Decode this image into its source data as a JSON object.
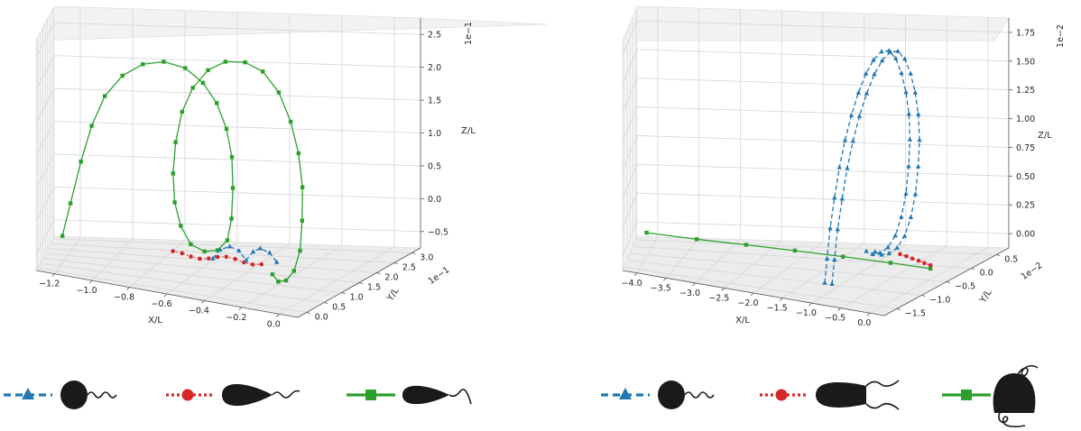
{
  "chart_data": [
    {
      "type": "line3d",
      "panel": "left",
      "xlabel": "X/L",
      "ylabel": "Y/L",
      "zlabel": "Z/L",
      "xticks": [
        "−1.2",
        "−1.0",
        "−0.8",
        "−0.6",
        "−0.4",
        "−0.2",
        "0.0"
      ],
      "yticks": [
        "0.0",
        "0.5",
        "1.0",
        "1.5",
        "2.0",
        "2.5",
        "3.0"
      ],
      "zticks": [
        "−0.5",
        "0.0",
        "0.5",
        "1.0",
        "1.5",
        "2.0",
        "2.5"
      ],
      "y_offset": "1e−1",
      "z_offset": "1e−1",
      "grid": true,
      "series": [
        {
          "color": "#2ca02c",
          "linestyle": "solid",
          "marker": "square",
          "points": [
            [
              -1.17,
              0.05,
              -0.4
            ],
            [
              -1.13,
              0.1,
              0.15
            ],
            [
              -1.08,
              0.18,
              0.85
            ],
            [
              -1.03,
              0.27,
              1.45
            ],
            [
              -0.97,
              0.38,
              1.95
            ],
            [
              -0.89,
              0.5,
              2.3
            ],
            [
              -0.8,
              0.64,
              2.5
            ],
            [
              -0.71,
              0.78,
              2.55
            ],
            [
              -0.62,
              0.92,
              2.45
            ],
            [
              -0.55,
              1.06,
              2.2
            ],
            [
              -0.5,
              1.2,
              1.85
            ],
            [
              -0.47,
              1.34,
              1.4
            ],
            [
              -0.46,
              1.48,
              0.9
            ],
            [
              -0.47,
              1.62,
              0.35
            ],
            [
              -0.49,
              1.76,
              -0.2
            ],
            [
              -0.52,
              1.88,
              -0.6
            ],
            [
              -0.57,
              1.97,
              -0.8
            ],
            [
              -0.63,
              2.02,
              -0.85
            ],
            [
              -0.69,
              2.03,
              -0.75
            ],
            [
              -0.73,
              2.0,
              -0.45
            ],
            [
              -0.75,
              1.92,
              -0.05
            ],
            [
              -0.75,
              1.82,
              0.45
            ],
            [
              -0.73,
              1.7,
              1.0
            ],
            [
              -0.69,
              1.56,
              1.55
            ],
            [
              -0.63,
              1.42,
              2.0
            ],
            [
              -0.55,
              1.3,
              2.35
            ],
            [
              -0.46,
              1.2,
              2.55
            ],
            [
              -0.36,
              1.12,
              2.6
            ],
            [
              -0.27,
              1.06,
              2.5
            ],
            [
              -0.19,
              1.02,
              2.2
            ],
            [
              -0.13,
              0.99,
              1.75
            ],
            [
              -0.09,
              0.97,
              1.25
            ],
            [
              -0.07,
              0.96,
              0.7
            ],
            [
              -0.07,
              0.95,
              0.15
            ],
            [
              -0.08,
              0.95,
              -0.35
            ],
            [
              -0.11,
              0.96,
              -0.7
            ],
            [
              -0.15,
              0.98,
              -0.88
            ],
            [
              -0.19,
              1.0,
              -0.92
            ],
            [
              -0.22,
              1.02,
              -0.82
            ]
          ]
        },
        {
          "color": "#d62728",
          "linestyle": "dotted",
          "marker": "circle",
          "points": [
            [
              -0.74,
              1.68,
              -0.8
            ],
            [
              -0.7,
              1.68,
              -0.82
            ],
            [
              -0.66,
              1.67,
              -0.86
            ],
            [
              -0.62,
              1.66,
              -0.88
            ],
            [
              -0.58,
              1.65,
              -0.86
            ],
            [
              -0.54,
              1.64,
              -0.82
            ],
            [
              -0.5,
              1.63,
              -0.8
            ],
            [
              -0.46,
              1.62,
              -0.82
            ],
            [
              -0.42,
              1.61,
              -0.86
            ],
            [
              -0.38,
              1.6,
              -0.88
            ],
            [
              -0.34,
              1.59,
              -0.86
            ]
          ]
        },
        {
          "color": "#1f77b4",
          "linestyle": "dashed",
          "marker": "triangle",
          "points": [
            [
              -0.56,
              1.64,
              -0.85
            ],
            [
              -0.53,
              1.66,
              -0.7
            ],
            [
              -0.49,
              1.68,
              -0.64
            ],
            [
              -0.45,
              1.69,
              -0.7
            ],
            [
              -0.42,
              1.7,
              -0.85
            ],
            [
              -0.39,
              1.71,
              -0.7
            ],
            [
              -0.36,
              1.72,
              -0.64
            ],
            [
              -0.32,
              1.73,
              -0.7
            ],
            [
              -0.29,
              1.74,
              -0.85
            ]
          ]
        }
      ]
    },
    {
      "type": "line3d",
      "panel": "right",
      "xlabel": "X/L",
      "ylabel": "Y/L",
      "zlabel": "Z/L",
      "xticks": [
        "−4.0",
        "−3.5",
        "−3.0",
        "−2.5",
        "−2.0",
        "−1.5",
        "−1.0",
        "−0.5",
        "0.0"
      ],
      "yticks": [
        "−1.5",
        "−1.0",
        "−0.5",
        "0.0",
        "0.5"
      ],
      "zticks": [
        "0.00",
        "0.25",
        "0.50",
        "0.75",
        "1.00",
        "1.25",
        "1.50",
        "1.75"
      ],
      "y_offset": "1e−2",
      "z_offset": "1e−2",
      "grid": true,
      "series": [
        {
          "color": "#2ca02c",
          "linestyle": "solid",
          "marker": "square",
          "points": [
            [
              -4.1,
              -0.1,
              0.0
            ],
            [
              -3.4,
              -0.15,
              -0.02
            ],
            [
              -2.7,
              -0.2,
              -0.03
            ],
            [
              -2.0,
              -0.25,
              -0.04
            ],
            [
              -1.3,
              -0.3,
              -0.05
            ],
            [
              -0.6,
              -0.35,
              -0.06
            ],
            [
              0.0,
              -0.4,
              -0.07
            ]
          ]
        },
        {
          "color": "#d62728",
          "linestyle": "dotted",
          "marker": "circle",
          "points": [
            [
              -0.55,
              -0.2,
              -0.01
            ],
            [
              -0.45,
              -0.22,
              -0.02
            ],
            [
              -0.35,
              -0.25,
              -0.03
            ],
            [
              -0.25,
              -0.27,
              -0.04
            ],
            [
              -0.15,
              -0.3,
              -0.05
            ],
            [
              -0.05,
              -0.32,
              -0.06
            ]
          ]
        },
        {
          "color": "#1f77b4",
          "linestyle": "dashed",
          "marker": "triangle",
          "points": [
            [
              -1.0,
              -1.4,
              -0.05
            ],
            [
              -1.02,
              -1.3,
              0.15
            ],
            [
              -1.04,
              -1.18,
              0.4
            ],
            [
              -1.05,
              -1.04,
              0.65
            ],
            [
              -1.05,
              -0.9,
              0.9
            ],
            [
              -1.04,
              -0.76,
              1.12
            ],
            [
              -1.02,
              -0.62,
              1.32
            ],
            [
              -0.99,
              -0.48,
              1.5
            ],
            [
              -0.95,
              -0.35,
              1.65
            ],
            [
              -0.91,
              -0.22,
              1.75
            ],
            [
              -0.87,
              -0.08,
              1.8
            ],
            [
              -0.84,
              0.06,
              1.78
            ],
            [
              -0.82,
              0.2,
              1.68
            ],
            [
              -0.81,
              0.33,
              1.52
            ],
            [
              -0.81,
              0.45,
              1.32
            ],
            [
              -0.82,
              0.55,
              1.1
            ],
            [
              -0.84,
              0.62,
              0.85
            ],
            [
              -0.87,
              0.65,
              0.6
            ],
            [
              -0.9,
              0.64,
              0.35
            ],
            [
              -0.93,
              0.58,
              0.15
            ],
            [
              -0.96,
              0.48,
              0.0
            ],
            [
              -0.99,
              0.34,
              -0.08
            ],
            [
              -1.02,
              0.18,
              -0.1
            ],
            [
              -1.04,
              0.02,
              -0.08
            ],
            [
              -1.05,
              -0.14,
              -0.02
            ]
          ]
        },
        {
          "color": "#1f77b4",
          "linestyle": "dashed",
          "marker": "triangle",
          "points": [
            [
              -0.88,
              -1.4,
              -0.05
            ],
            [
              -0.9,
              -1.3,
              0.15
            ],
            [
              -0.92,
              -1.18,
              0.4
            ],
            [
              -0.93,
              -1.04,
              0.65
            ],
            [
              -0.93,
              -0.9,
              0.9
            ],
            [
              -0.92,
              -0.76,
              1.12
            ],
            [
              -0.9,
              -0.62,
              1.32
            ],
            [
              -0.87,
              -0.48,
              1.5
            ],
            [
              -0.83,
              -0.35,
              1.65
            ],
            [
              -0.79,
              -0.22,
              1.75
            ],
            [
              -0.75,
              -0.08,
              1.8
            ],
            [
              -0.72,
              0.06,
              1.78
            ],
            [
              -0.7,
              0.2,
              1.68
            ],
            [
              -0.69,
              0.33,
              1.52
            ],
            [
              -0.69,
              0.45,
              1.32
            ],
            [
              -0.7,
              0.55,
              1.1
            ],
            [
              -0.72,
              0.62,
              0.85
            ],
            [
              -0.75,
              0.65,
              0.6
            ],
            [
              -0.78,
              0.64,
              0.35
            ],
            [
              -0.81,
              0.58,
              0.15
            ],
            [
              -0.84,
              0.48,
              0.0
            ],
            [
              -0.87,
              0.34,
              -0.08
            ],
            [
              -0.9,
              0.18,
              -0.1
            ],
            [
              -0.92,
              0.02,
              -0.08
            ],
            [
              -0.93,
              -0.14,
              -0.02
            ]
          ]
        }
      ]
    }
  ],
  "legend_glyphs": [
    {
      "color": "#1f77b4",
      "linestyle": "dashed",
      "marker": "triangle",
      "icon": "round-cell-single-flagellum-icon"
    },
    {
      "color": "#d62728",
      "linestyle": "dotted",
      "marker": "circle",
      "icon": "teardrop-cell-single-flagellum-icon"
    },
    {
      "color": "#2ca02c",
      "linestyle": "solid",
      "marker": "square",
      "icon": "teardrop-cell-curved-flagellum-icon"
    },
    {
      "color": "#1f77b4",
      "linestyle": "dashed",
      "marker": "triangle",
      "icon": "round-cell-single-flagellum-icon"
    },
    {
      "color": "#d62728",
      "linestyle": "dotted",
      "marker": "circle",
      "icon": "teardrop-cell-two-flagella-icon"
    },
    {
      "color": "#2ca02c",
      "linestyle": "solid",
      "marker": "square",
      "icon": "bell-cell-looped-flagella-icon"
    }
  ]
}
